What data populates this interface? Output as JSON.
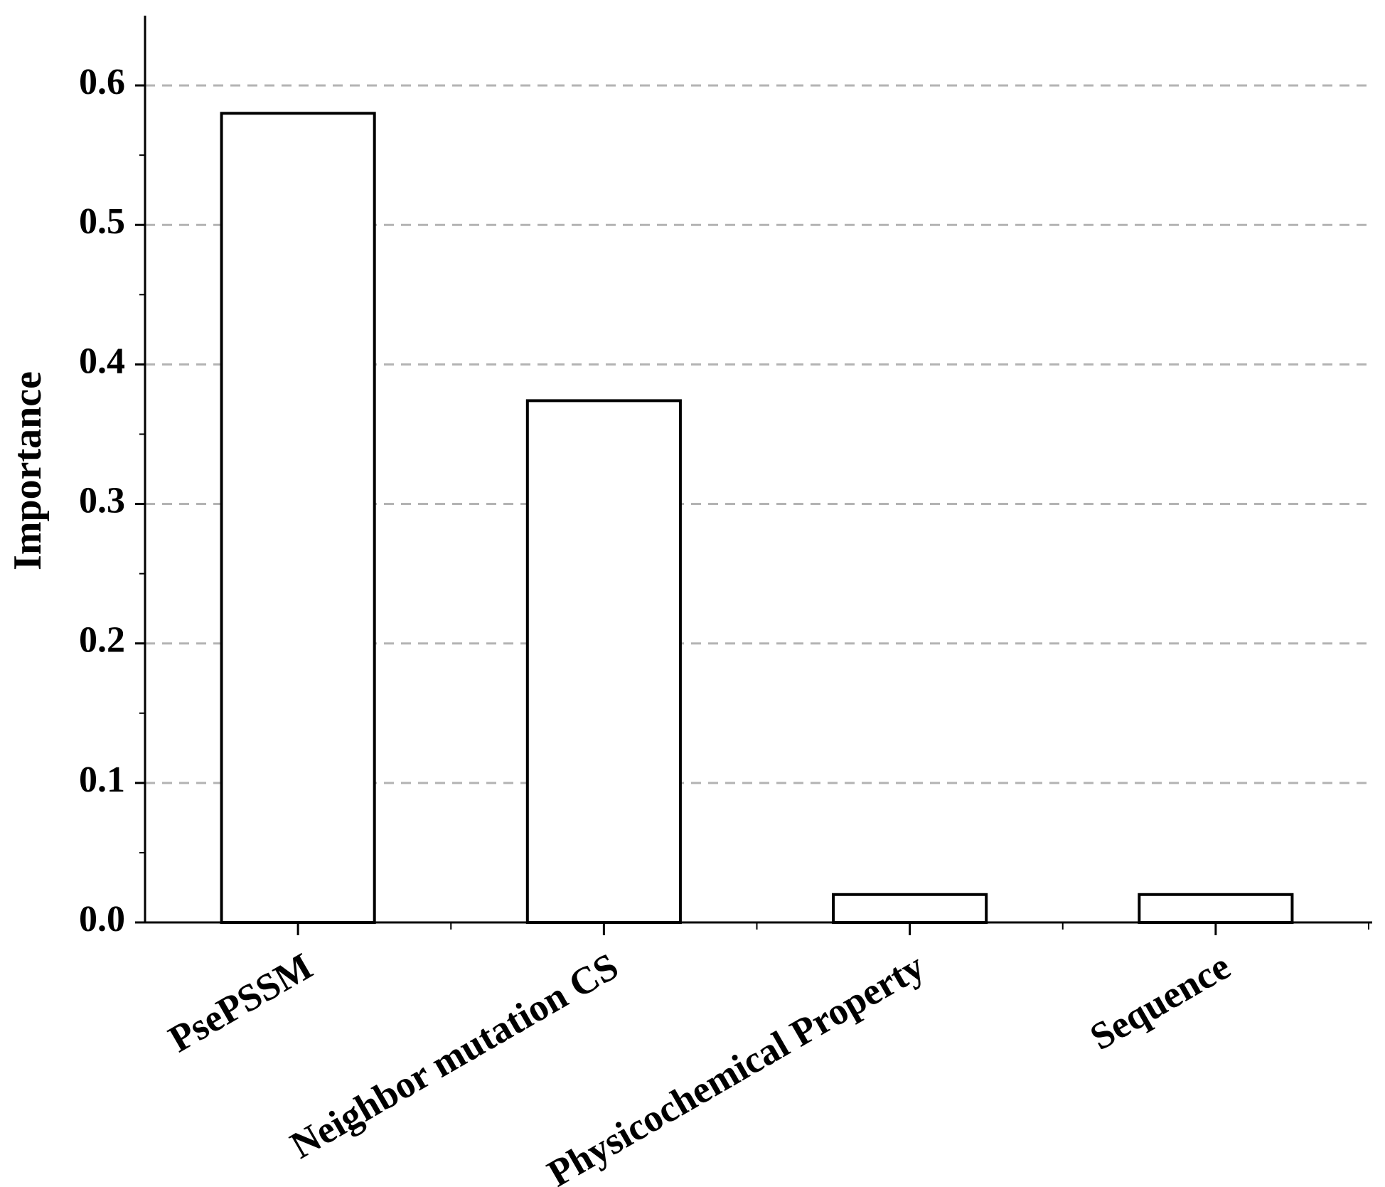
{
  "chart_data": {
    "type": "bar",
    "y_label": "Importance",
    "categories": [
      "PsePSSM",
      "Neighbor mutation CS",
      "Physicochemical Property",
      "Sequence"
    ],
    "values": [
      0.58,
      0.374,
      0.02,
      0.02
    ],
    "color": "#ffffff",
    "ylim": [
      0,
      0.65
    ],
    "yticks": [
      {
        "value": 0,
        "label": "0.0"
      },
      0.1,
      0.2,
      0.3,
      0.4,
      0.5,
      0.6
    ],
    "grid": true
  }
}
